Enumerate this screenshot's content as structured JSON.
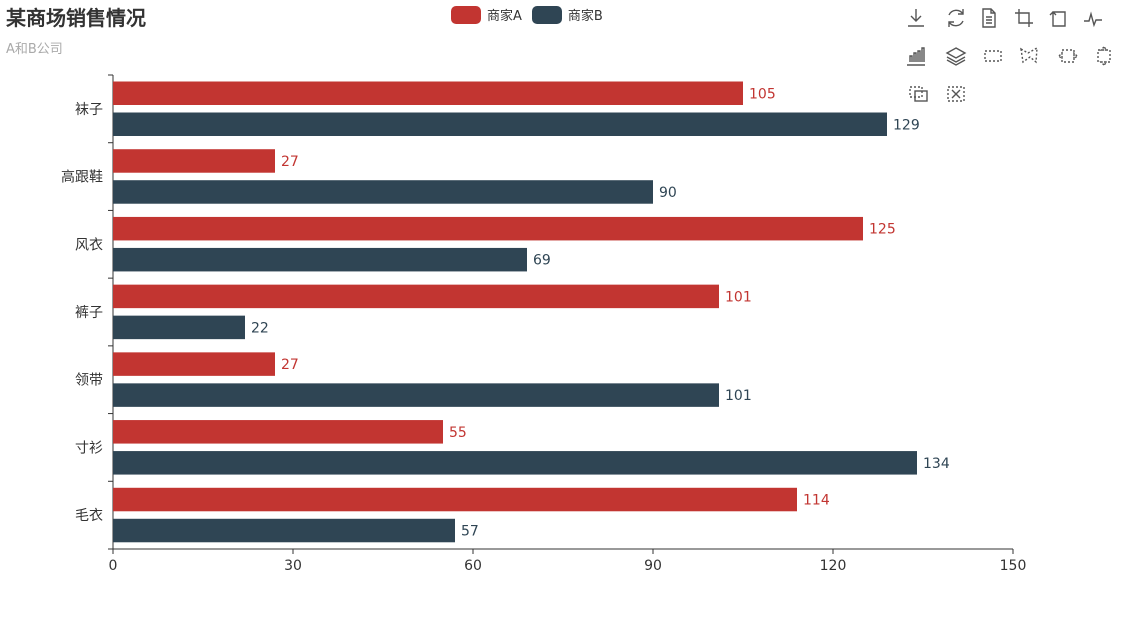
{
  "colors": {
    "series_a": "#c23531",
    "series_b": "#2f4554",
    "axis": "#333333",
    "text": "#333333"
  },
  "toolbox": {
    "tools": [
      {
        "name": "download-icon"
      },
      {
        "name": "refresh-icon"
      },
      {
        "name": "data-view-icon"
      },
      {
        "name": "zoom-icon"
      },
      {
        "name": "zoom-reset-icon"
      },
      {
        "name": "line-chart-icon"
      },
      {
        "name": "bar-chart-icon"
      },
      {
        "name": "stack-icon"
      },
      {
        "name": "rect-select-icon"
      },
      {
        "name": "polygon-select-icon"
      },
      {
        "name": "line-x-select-icon"
      },
      {
        "name": "line-y-select-icon"
      },
      {
        "name": "keep-select-icon"
      },
      {
        "name": "clear-select-icon"
      }
    ]
  },
  "chart_data": {
    "type": "bar",
    "orientation": "horizontal",
    "title": "某商场销售情况",
    "subtitle": "A和B公司",
    "categories": [
      "毛衣",
      "寸衫",
      "领带",
      "裤子",
      "风衣",
      "高跟鞋",
      "袜子"
    ],
    "series": [
      {
        "name": "商家A",
        "values": [
          114,
          55,
          27,
          101,
          125,
          27,
          105
        ]
      },
      {
        "name": "商家B",
        "values": [
          57,
          134,
          101,
          22,
          69,
          90,
          129
        ]
      }
    ],
    "xlim": [
      0,
      150
    ],
    "xticks": [
      0,
      30,
      60,
      90,
      120,
      150
    ],
    "legend_position": "top-center",
    "grid": false
  }
}
